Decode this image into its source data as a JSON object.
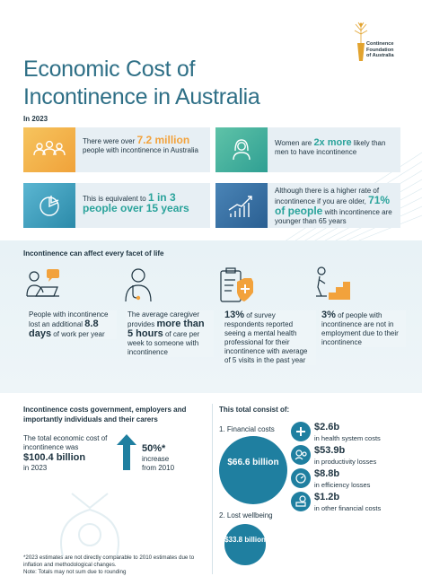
{
  "header": {
    "title_line1": "Economic Cost of",
    "title_line2": "Incontinence in Australia",
    "logo_line1": "Continence",
    "logo_line2": "Foundation",
    "logo_line3": "of Australia"
  },
  "year_label": "In 2023",
  "cards": {
    "c1": {
      "pre": "There were over ",
      "highlight": "7.2 million",
      "post": " people with incontinence in Australia"
    },
    "c2": {
      "pre": "Women are ",
      "highlight": "2x more",
      "post": " likely than men to have incontinence"
    },
    "c3": {
      "pre": "This is equivalent to ",
      "highlight": "1 in 3 people over 15 years"
    },
    "c4": {
      "pre": "Although there is a higher rate of incontinence if you are older, ",
      "highlight": "71% of people",
      "post": " with incontinence are younger than 65 years"
    }
  },
  "facets": {
    "title": "Incontinence can affect every facet of life",
    "f1": {
      "pre": "People with incontinence lost an additional ",
      "highlight": "8.8 days",
      "post": " of work per year"
    },
    "f2": {
      "pre": "The average caregiver provides ",
      "highlight": "more than 5 hours",
      "post": " of care per week to someone with incontinence"
    },
    "f3": {
      "highlight": "13%",
      "post": " of survey respondents reported seeing a mental health professional for their incontinence with average of 5 visits in the past year"
    },
    "f4": {
      "highlight": "3%",
      "post": " of people with incontinence are not in employment due to their incontinence"
    }
  },
  "left": {
    "title": "Incontinence costs government, employers and importantly individuals and their carers",
    "total_pre": "The total economic cost of incontinence was",
    "total_value": "$100.4 billion",
    "total_post": "in 2023",
    "increase_value": "50%*",
    "increase_desc1": "increase",
    "increase_desc2": "from 2010"
  },
  "right": {
    "title": "This total consist of:",
    "financial_label": "1. Financial costs",
    "financial_total": "$66.6 billion",
    "wellbeing_label": "2. Lost wellbeing",
    "wellbeing_total": "$33.8 billion",
    "items": [
      {
        "value": "$2.6b",
        "desc": "in health system costs",
        "icon": "health-icon"
      },
      {
        "value": "$53.9b",
        "desc": "in productivity losses",
        "icon": "productivity-icon"
      },
      {
        "value": "$8.8b",
        "desc": "in efficiency losses",
        "icon": "efficiency-icon"
      },
      {
        "value": "$1.2b",
        "desc": "in other financial costs",
        "icon": "money-icon"
      }
    ]
  },
  "footnote": {
    "line1": "*2023 estimates are not directly comparable to 2010 estimates due to inflation and methodological changes.",
    "line2": "Note: Totals may not sum due to rounding"
  },
  "colors": {
    "orange": "#f2a23c",
    "teal": "#2aa39b",
    "blue": "#1f7fa0",
    "title": "#2e6f86"
  }
}
